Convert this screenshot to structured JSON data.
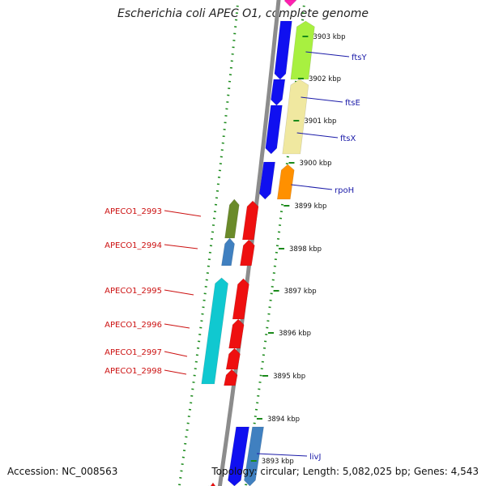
{
  "title": "Escherichia coli APEC O1, complete genome",
  "footer": {
    "accession": "Accession: NC_008563",
    "summary": "Topology: circular; Length: 5,082,025 bp; Genes: 4,543"
  },
  "colors": {
    "backbone": "#8c8c8c",
    "dotted_track": "#1a8a1a",
    "forward_label": "#1a1aa8",
    "reverse_label": "#cc1111",
    "cds_blue": "#1010f0",
    "cds_red": "#ee1010",
    "cds_cyan": "#10c8d0",
    "cds_steel": "#4080c0",
    "cds_olive": "#6a8a2a",
    "cds_lime": "#a8f040",
    "cds_khaki": "#f0e8a0",
    "cds_orange": "#ff9000",
    "cds_magenta": "#ff20b0"
  },
  "ticks": [
    {
      "label": "3903 kbp"
    },
    {
      "label": "3902 kbp"
    },
    {
      "label": "3901 kbp"
    },
    {
      "label": "3900 kbp"
    },
    {
      "label": "3899 kbp"
    },
    {
      "label": "3898 kbp"
    },
    {
      "label": "3897 kbp"
    },
    {
      "label": "3896 kbp"
    },
    {
      "label": "3895 kbp"
    },
    {
      "label": "3894 kbp"
    },
    {
      "label": "3893 kbp"
    }
  ],
  "forward_genes": [
    {
      "label": "ftsY"
    },
    {
      "label": "ftsE"
    },
    {
      "label": "ftsX"
    },
    {
      "label": "rpoH"
    },
    {
      "label": "livJ"
    }
  ],
  "reverse_genes": [
    {
      "label": "APECO1_2993"
    },
    {
      "label": "APECO1_2994"
    },
    {
      "label": "APECO1_2995"
    },
    {
      "label": "APECO1_2996"
    },
    {
      "label": "APECO1_2997"
    },
    {
      "label": "APECO1_2998"
    }
  ]
}
